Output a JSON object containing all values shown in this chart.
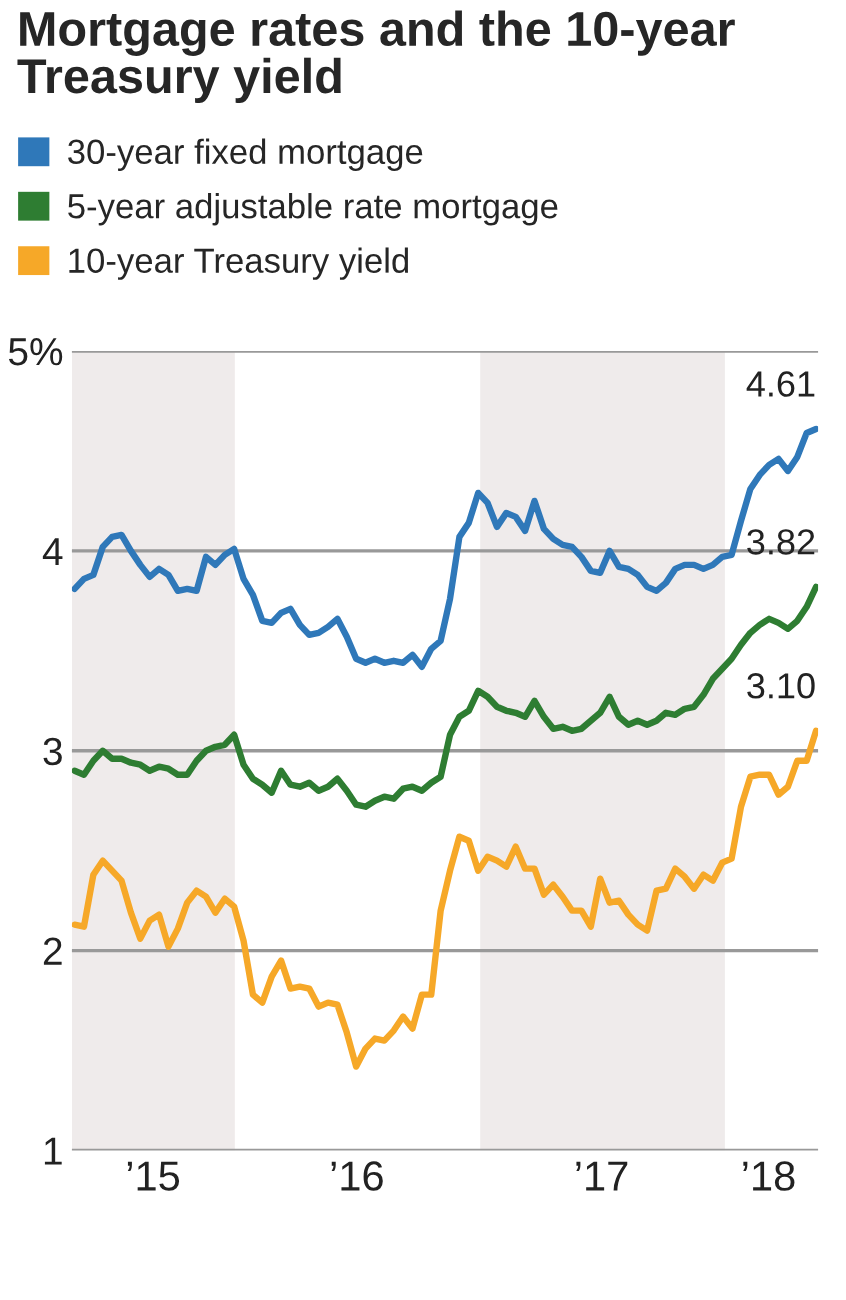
{
  "chart_data": {
    "type": "line",
    "title": "Mortgage rates and the 10-year\nTreasury yield",
    "x": [
      "2015-05-07",
      "2015-05-21",
      "2015-06-04",
      "2015-06-18",
      "2015-07-02",
      "2015-07-16",
      "2015-07-30",
      "2015-08-13",
      "2015-08-27",
      "2015-09-10",
      "2015-09-24",
      "2015-10-08",
      "2015-10-22",
      "2015-11-05",
      "2015-11-19",
      "2015-12-03",
      "2015-12-17",
      "2015-12-31",
      "2016-01-14",
      "2016-01-28",
      "2016-02-11",
      "2016-02-25",
      "2016-03-10",
      "2016-03-24",
      "2016-04-07",
      "2016-04-21",
      "2016-05-05",
      "2016-05-19",
      "2016-06-02",
      "2016-06-16",
      "2016-06-30",
      "2016-07-14",
      "2016-07-28",
      "2016-08-11",
      "2016-08-25",
      "2016-09-08",
      "2016-09-22",
      "2016-10-06",
      "2016-10-20",
      "2016-11-03",
      "2016-11-17",
      "2016-12-01",
      "2016-12-15",
      "2016-12-29",
      "2017-01-12",
      "2017-01-26",
      "2017-02-09",
      "2017-02-23",
      "2017-03-09",
      "2017-03-23",
      "2017-04-06",
      "2017-04-20",
      "2017-05-04",
      "2017-05-18",
      "2017-06-01",
      "2017-06-15",
      "2017-06-29",
      "2017-07-13",
      "2017-07-27",
      "2017-08-10",
      "2017-08-24",
      "2017-09-07",
      "2017-09-21",
      "2017-10-05",
      "2017-10-19",
      "2017-11-02",
      "2017-11-16",
      "2017-11-30",
      "2017-12-14",
      "2017-12-28",
      "2018-01-11",
      "2018-01-25",
      "2018-02-08",
      "2018-02-22",
      "2018-03-08",
      "2018-03-22",
      "2018-04-05",
      "2018-04-19",
      "2018-05-03",
      "2018-05-17"
    ],
    "series": [
      {
        "name": "30-year fixed mortgage",
        "color": "#2f78b9",
        "values": [
          3.81,
          3.86,
          3.88,
          4.02,
          4.07,
          4.08,
          4.0,
          3.93,
          3.87,
          3.91,
          3.88,
          3.8,
          3.81,
          3.8,
          3.97,
          3.93,
          3.98,
          4.01,
          3.86,
          3.78,
          3.65,
          3.64,
          3.69,
          3.71,
          3.63,
          3.58,
          3.59,
          3.62,
          3.66,
          3.57,
          3.46,
          3.44,
          3.46,
          3.44,
          3.45,
          3.44,
          3.48,
          3.42,
          3.51,
          3.55,
          3.76,
          4.07,
          4.14,
          4.29,
          4.24,
          4.12,
          4.19,
          4.17,
          4.1,
          4.25,
          4.11,
          4.06,
          4.03,
          4.02,
          3.97,
          3.9,
          3.89,
          4.0,
          3.92,
          3.91,
          3.88,
          3.82,
          3.8,
          3.84,
          3.91,
          3.93,
          3.93,
          3.91,
          3.93,
          3.97,
          3.98,
          4.15,
          4.31,
          4.38,
          4.43,
          4.46,
          4.4,
          4.47,
          4.59,
          4.61
        ],
        "value_labels": [
          null,
          null,
          null,
          null,
          null,
          null,
          null,
          null,
          null,
          null,
          null,
          null,
          null,
          null,
          null,
          null,
          null,
          null,
          null,
          null,
          null,
          null,
          null,
          null,
          null,
          null,
          null,
          null,
          null,
          null,
          null,
          null,
          null,
          null,
          null,
          null,
          null,
          null,
          null,
          null,
          null,
          null,
          null,
          null,
          null,
          null,
          null,
          null,
          null,
          null,
          null,
          null,
          null,
          null,
          null,
          null,
          null,
          null,
          null,
          null,
          null,
          null,
          null,
          null,
          null,
          null,
          null,
          null,
          null,
          null,
          null,
          null,
          null,
          null,
          null,
          null,
          null,
          null,
          null,
          "4.61"
        ]
      },
      {
        "name": "5-year adjustable rate mortgage",
        "color": "#2e7d32",
        "values": [
          2.9,
          2.88,
          2.95,
          3.0,
          2.96,
          2.96,
          2.94,
          2.93,
          2.9,
          2.92,
          2.91,
          2.88,
          2.88,
          2.95,
          3.0,
          3.02,
          3.03,
          3.08,
          2.93,
          2.86,
          2.83,
          2.79,
          2.9,
          2.83,
          2.82,
          2.84,
          2.8,
          2.82,
          2.86,
          2.8,
          2.73,
          2.72,
          2.75,
          2.77,
          2.76,
          2.81,
          2.82,
          2.8,
          2.84,
          2.87,
          3.08,
          3.17,
          3.2,
          3.3,
          3.27,
          3.22,
          3.2,
          3.19,
          3.17,
          3.25,
          3.17,
          3.11,
          3.12,
          3.1,
          3.11,
          3.15,
          3.19,
          3.27,
          3.17,
          3.13,
          3.15,
          3.13,
          3.15,
          3.19,
          3.18,
          3.21,
          3.22,
          3.28,
          3.36,
          3.41,
          3.46,
          3.53,
          3.59,
          3.63,
          3.66,
          3.64,
          3.61,
          3.65,
          3.72,
          3.82
        ],
        "value_labels": [
          null,
          null,
          null,
          null,
          null,
          null,
          null,
          null,
          null,
          null,
          null,
          null,
          null,
          null,
          null,
          null,
          null,
          null,
          null,
          null,
          null,
          null,
          null,
          null,
          null,
          null,
          null,
          null,
          null,
          null,
          null,
          null,
          null,
          null,
          null,
          null,
          null,
          null,
          null,
          null,
          null,
          null,
          null,
          null,
          null,
          null,
          null,
          null,
          null,
          null,
          null,
          null,
          null,
          null,
          null,
          null,
          null,
          null,
          null,
          null,
          null,
          null,
          null,
          null,
          null,
          null,
          null,
          null,
          null,
          null,
          null,
          null,
          null,
          null,
          null,
          null,
          null,
          null,
          null,
          "3.82"
        ]
      },
      {
        "name": "10-year Treasury yield",
        "color": "#f6a828",
        "values": [
          2.13,
          2.12,
          2.38,
          2.45,
          2.4,
          2.35,
          2.19,
          2.06,
          2.15,
          2.18,
          2.02,
          2.11,
          2.24,
          2.3,
          2.27,
          2.19,
          2.26,
          2.22,
          2.05,
          1.78,
          1.74,
          1.87,
          1.95,
          1.81,
          1.82,
          1.81,
          1.72,
          1.74,
          1.73,
          1.59,
          1.42,
          1.51,
          1.56,
          1.55,
          1.6,
          1.67,
          1.61,
          1.78,
          1.78,
          2.2,
          2.4,
          2.57,
          2.55,
          2.4,
          2.47,
          2.45,
          2.42,
          2.52,
          2.41,
          2.41,
          2.28,
          2.33,
          2.27,
          2.2,
          2.2,
          2.12,
          2.36,
          2.24,
          2.25,
          2.18,
          2.13,
          2.1,
          2.3,
          2.31,
          2.41,
          2.37,
          2.31,
          2.38,
          2.35,
          2.44,
          2.46,
          2.72,
          2.87,
          2.88,
          2.88,
          2.78,
          2.82,
          2.95,
          2.95,
          3.1
        ],
        "value_labels": [
          null,
          null,
          null,
          null,
          null,
          null,
          null,
          null,
          null,
          null,
          null,
          null,
          null,
          null,
          null,
          null,
          null,
          null,
          null,
          null,
          null,
          null,
          null,
          null,
          null,
          null,
          null,
          null,
          null,
          null,
          null,
          null,
          null,
          null,
          null,
          null,
          null,
          null,
          null,
          null,
          null,
          null,
          null,
          null,
          null,
          null,
          null,
          null,
          null,
          null,
          null,
          null,
          null,
          null,
          null,
          null,
          null,
          null,
          null,
          null,
          null,
          null,
          null,
          null,
          null,
          null,
          null,
          null,
          null,
          null,
          null,
          null,
          null,
          null,
          null,
          null,
          null,
          null,
          null,
          "3.10"
        ]
      }
    ],
    "xlim": [
      "2015-05-03",
      "2018-05-20"
    ],
    "xticks": [
      {
        "value": "2015-09-01",
        "label": "’15"
      },
      {
        "value": "2016-07-01",
        "label": "’16"
      },
      {
        "value": "2017-07-01",
        "label": "’17"
      },
      {
        "value": "2018-03-07",
        "label": "’18"
      }
    ],
    "ylim": [
      1,
      5
    ],
    "yticks": [
      1,
      2,
      3,
      4,
      {
        "value": 5,
        "label": "5%"
      }
    ],
    "bands": [
      {
        "axis": "x",
        "from": "2015-05-03",
        "to": "2016-01-01",
        "color": "#efebeb"
      },
      {
        "axis": "x",
        "from": "2017-01-01",
        "to": "2018-01-01",
        "color": "#efebeb"
      }
    ],
    "grid": "y",
    "legend": "top left",
    "marker": "none",
    "line_style": "solid"
  }
}
